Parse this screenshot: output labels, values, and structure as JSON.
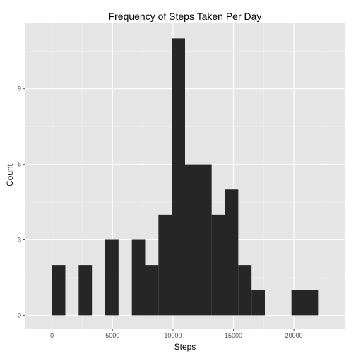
{
  "chart_data": {
    "type": "bar",
    "title": "Frequency of Steps Taken Per Day",
    "xlabel": "Steps",
    "ylabel": "Count",
    "xlim": [
      -2200,
      24200
    ],
    "ylim": [
      -0.55,
      11.6
    ],
    "x_ticks": [
      0,
      5000,
      10000,
      15000,
      20000
    ],
    "x_tick_labels": [
      "0",
      "5000",
      "10000",
      "15000",
      "20000"
    ],
    "y_ticks": [
      0,
      3,
      6,
      9
    ],
    "y_tick_labels": [
      "0",
      "3",
      "6",
      "9"
    ],
    "bin_width": 1100,
    "bins": [
      {
        "x0": 0,
        "x1": 1100,
        "count": 2
      },
      {
        "x0": 2200,
        "x1": 3300,
        "count": 2
      },
      {
        "x0": 4400,
        "x1": 5500,
        "count": 3
      },
      {
        "x0": 6600,
        "x1": 7700,
        "count": 3
      },
      {
        "x0": 7700,
        "x1": 8800,
        "count": 2
      },
      {
        "x0": 8800,
        "x1": 9900,
        "count": 4
      },
      {
        "x0": 9900,
        "x1": 11000,
        "count": 11
      },
      {
        "x0": 11000,
        "x1": 12100,
        "count": 6
      },
      {
        "x0": 12100,
        "x1": 13200,
        "count": 6
      },
      {
        "x0": 13200,
        "x1": 14300,
        "count": 4
      },
      {
        "x0": 14300,
        "x1": 15400,
        "count": 5
      },
      {
        "x0": 15400,
        "x1": 16500,
        "count": 2
      },
      {
        "x0": 16500,
        "x1": 17600,
        "count": 1
      },
      {
        "x0": 19800,
        "x1": 20900,
        "count": 1
      },
      {
        "x0": 20900,
        "x1": 22000,
        "count": 1
      }
    ],
    "grid": true,
    "legend": "none",
    "colors": {
      "panel": "#e5e5e5",
      "grid_major": "#ffffff",
      "grid_minor": "#f2f2f2",
      "bar": "#262626",
      "tick": "#4d4d4d"
    }
  }
}
